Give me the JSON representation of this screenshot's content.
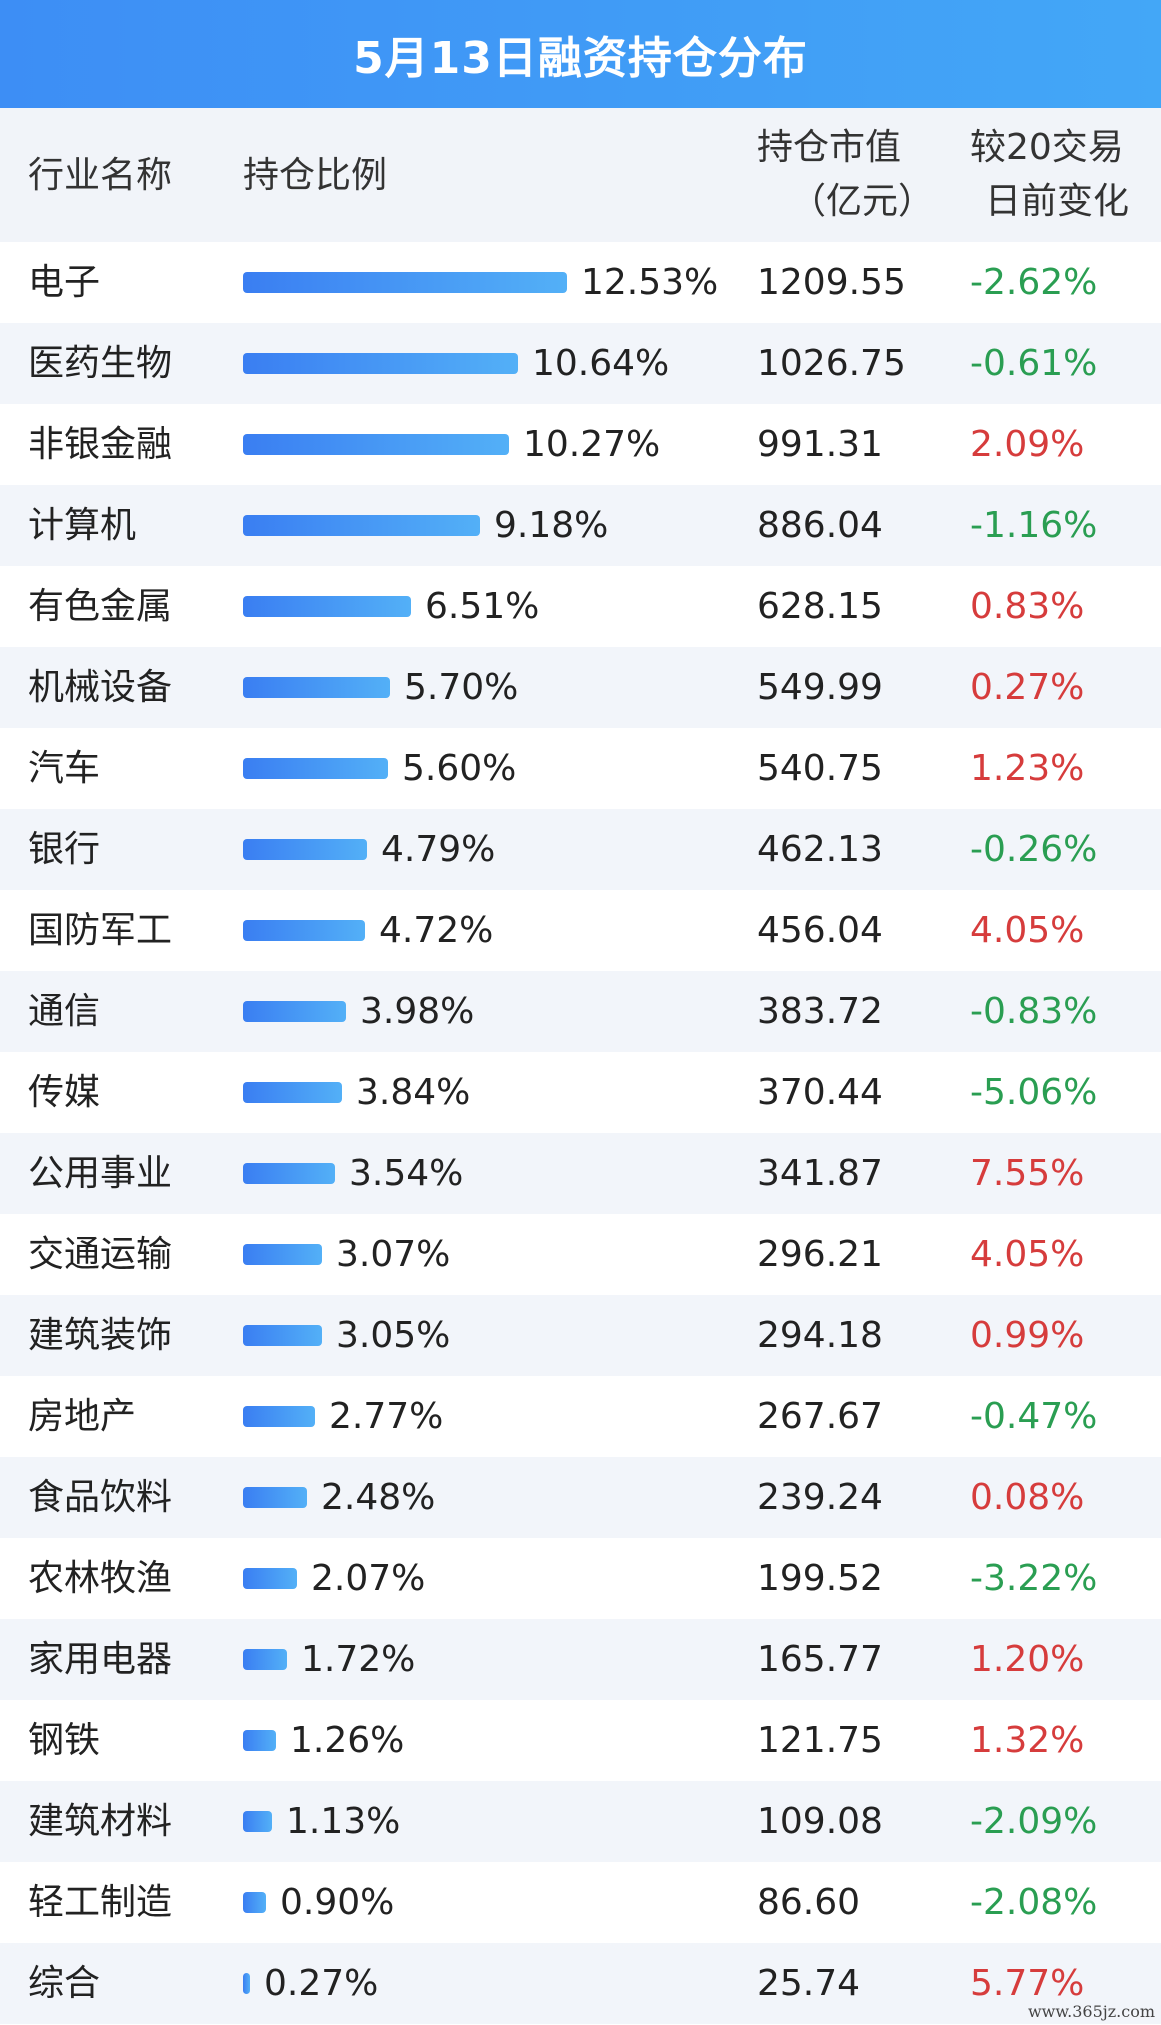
{
  "title": "5月13日融资持仓分布",
  "headers": {
    "industry": "行业名称",
    "ratio": "持仓比例",
    "value_line1": "持仓市值",
    "value_line2": "（亿元）",
    "change_line1": "较20交易",
    "change_line2": "日前变化"
  },
  "site": "www.365jz.com",
  "colors": {
    "header_bar": "#3d8ef5",
    "positive": "#d63c3c",
    "negative": "#2a9e52",
    "bar": "#3a7ef2"
  },
  "chart_data": {
    "type": "table",
    "columns": [
      "行业名称",
      "持仓比例",
      "持仓市值（亿元）",
      "较20交易日前变化"
    ],
    "rows": [
      {
        "name": "电子",
        "ratio": 12.53,
        "ratio_label": "12.53%",
        "value": "1209.55",
        "change": "-2.62%",
        "sign": "neg"
      },
      {
        "name": "医药生物",
        "ratio": 10.64,
        "ratio_label": "10.64%",
        "value": "1026.75",
        "change": "-0.61%",
        "sign": "neg"
      },
      {
        "name": "非银金融",
        "ratio": 10.27,
        "ratio_label": "10.27%",
        "value": "991.31",
        "change": "2.09%",
        "sign": "pos"
      },
      {
        "name": "计算机",
        "ratio": 9.18,
        "ratio_label": "9.18%",
        "value": "886.04",
        "change": "-1.16%",
        "sign": "neg"
      },
      {
        "name": "有色金属",
        "ratio": 6.51,
        "ratio_label": "6.51%",
        "value": "628.15",
        "change": "0.83%",
        "sign": "pos"
      },
      {
        "name": "机械设备",
        "ratio": 5.7,
        "ratio_label": "5.70%",
        "value": "549.99",
        "change": "0.27%",
        "sign": "pos"
      },
      {
        "name": "汽车",
        "ratio": 5.6,
        "ratio_label": "5.60%",
        "value": "540.75",
        "change": "1.23%",
        "sign": "pos"
      },
      {
        "name": "银行",
        "ratio": 4.79,
        "ratio_label": "4.79%",
        "value": "462.13",
        "change": "-0.26%",
        "sign": "neg"
      },
      {
        "name": "国防军工",
        "ratio": 4.72,
        "ratio_label": "4.72%",
        "value": "456.04",
        "change": "4.05%",
        "sign": "pos"
      },
      {
        "name": "通信",
        "ratio": 3.98,
        "ratio_label": "3.98%",
        "value": "383.72",
        "change": "-0.83%",
        "sign": "neg"
      },
      {
        "name": "传媒",
        "ratio": 3.84,
        "ratio_label": "3.84%",
        "value": "370.44",
        "change": "-5.06%",
        "sign": "neg"
      },
      {
        "name": "公用事业",
        "ratio": 3.54,
        "ratio_label": "3.54%",
        "value": "341.87",
        "change": "7.55%",
        "sign": "pos"
      },
      {
        "name": "交通运输",
        "ratio": 3.07,
        "ratio_label": "3.07%",
        "value": "296.21",
        "change": "4.05%",
        "sign": "pos"
      },
      {
        "name": "建筑装饰",
        "ratio": 3.05,
        "ratio_label": "3.05%",
        "value": "294.18",
        "change": "0.99%",
        "sign": "pos"
      },
      {
        "name": "房地产",
        "ratio": 2.77,
        "ratio_label": "2.77%",
        "value": "267.67",
        "change": "-0.47%",
        "sign": "neg"
      },
      {
        "name": "食品饮料",
        "ratio": 2.48,
        "ratio_label": "2.48%",
        "value": "239.24",
        "change": "0.08%",
        "sign": "pos"
      },
      {
        "name": "农林牧渔",
        "ratio": 2.07,
        "ratio_label": "2.07%",
        "value": "199.52",
        "change": "-3.22%",
        "sign": "neg"
      },
      {
        "name": "家用电器",
        "ratio": 1.72,
        "ratio_label": "1.72%",
        "value": "165.77",
        "change": "1.20%",
        "sign": "pos"
      },
      {
        "name": "钢铁",
        "ratio": 1.26,
        "ratio_label": "1.26%",
        "value": "121.75",
        "change": "1.32%",
        "sign": "pos"
      },
      {
        "name": "建筑材料",
        "ratio": 1.13,
        "ratio_label": "1.13%",
        "value": "109.08",
        "change": "-2.09%",
        "sign": "neg"
      },
      {
        "name": "轻工制造",
        "ratio": 0.9,
        "ratio_label": "0.90%",
        "value": "86.60",
        "change": "-2.08%",
        "sign": "neg"
      },
      {
        "name": "综合",
        "ratio": 0.27,
        "ratio_label": "0.27%",
        "value": "25.74",
        "change": "5.77%",
        "sign": "pos"
      }
    ]
  }
}
